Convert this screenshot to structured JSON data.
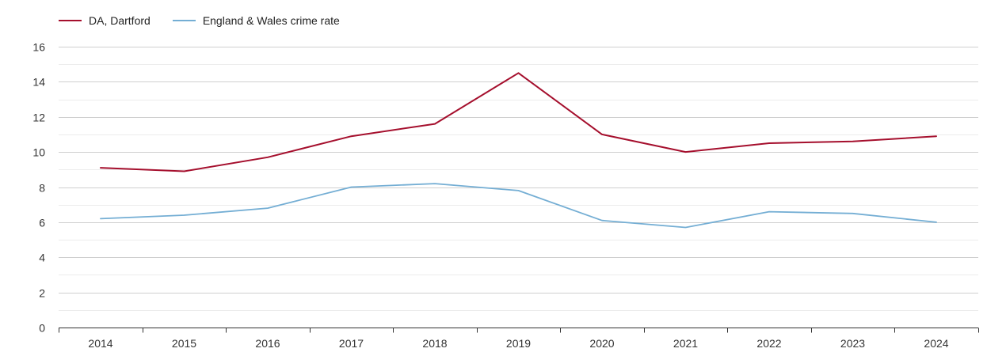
{
  "chart_data": {
    "type": "line",
    "title": "",
    "xlabel": "",
    "ylabel": "",
    "categories": [
      "2014",
      "2015",
      "2016",
      "2017",
      "2018",
      "2019",
      "2020",
      "2021",
      "2022",
      "2023",
      "2024"
    ],
    "ylim": [
      0,
      16
    ],
    "yticks": [
      0,
      2,
      4,
      6,
      8,
      10,
      12,
      14,
      16
    ],
    "grid": "horizontal",
    "legend_position": "top-left",
    "series": [
      {
        "name": "DA, Dartford",
        "color": "#a50f2d",
        "values": [
          9.1,
          8.9,
          9.7,
          10.9,
          11.6,
          14.5,
          11.0,
          10.0,
          10.5,
          10.6,
          10.9
        ]
      },
      {
        "name": "England & Wales crime rate",
        "color": "#74aed4",
        "values": [
          6.2,
          6.4,
          6.8,
          8.0,
          8.2,
          7.8,
          6.1,
          5.7,
          6.6,
          6.5,
          6.0
        ]
      }
    ]
  }
}
